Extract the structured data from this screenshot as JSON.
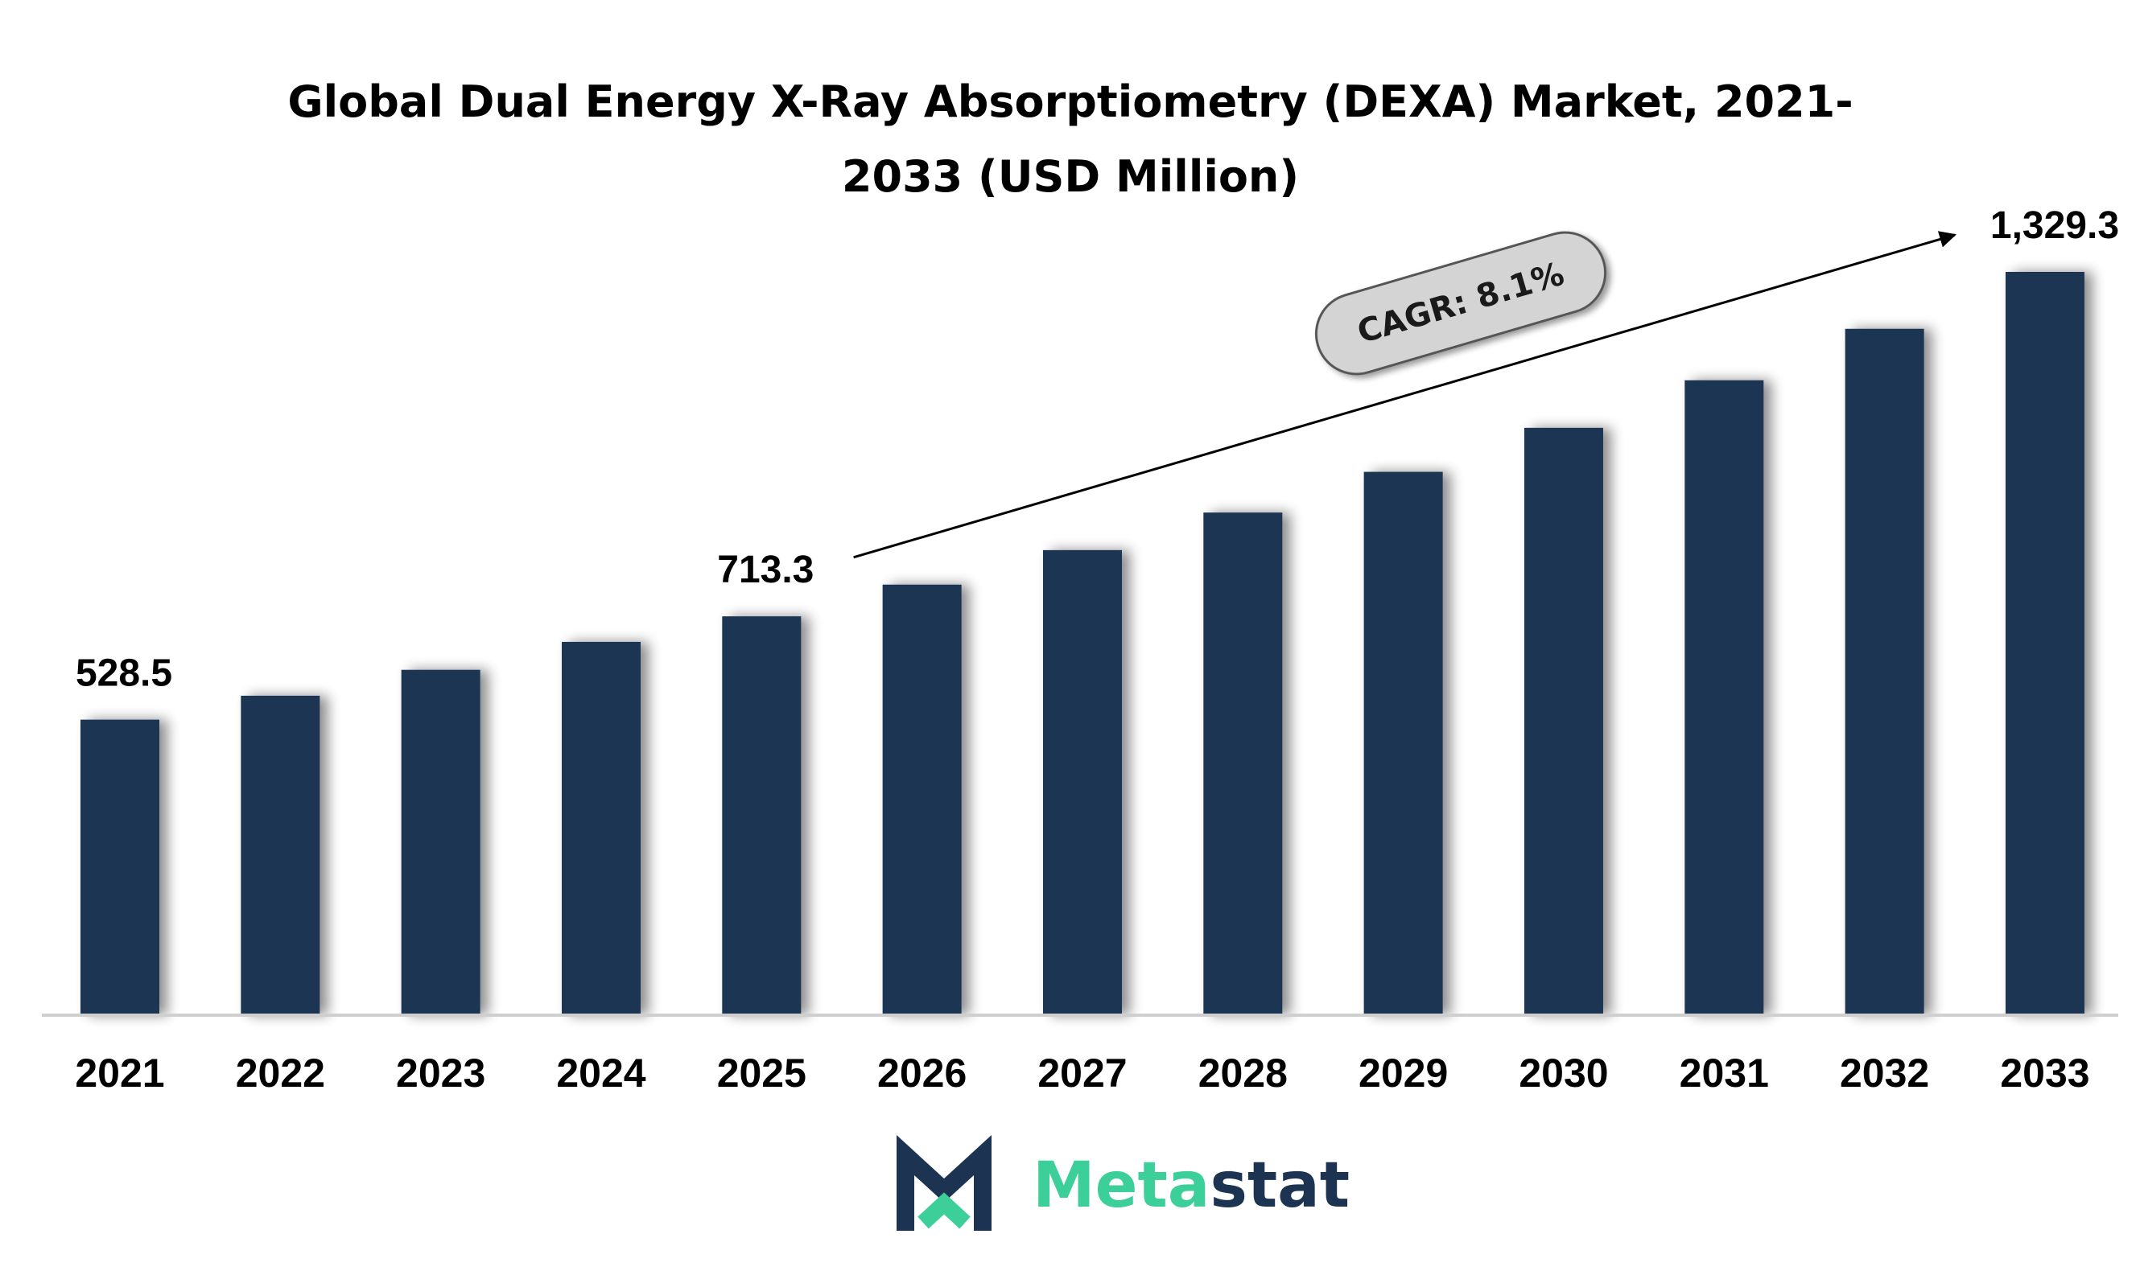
{
  "chart_data": {
    "type": "bar",
    "title_lines": [
      "Global Dual Energy X-Ray Absorptiometry (DEXA) Market, 2021-",
      "2033 (USD Million)"
    ],
    "categories": [
      "2021",
      "2022",
      "2023",
      "2024",
      "2025",
      "2026",
      "2027",
      "2028",
      "2029",
      "2030",
      "2031",
      "2032",
      "2033"
    ],
    "values": [
      528.5,
      571.3,
      617.6,
      667.6,
      713.3,
      770.0,
      831.7,
      898.9,
      971.7,
      1050.4,
      1135.5,
      1227.5,
      1329.3
    ],
    "data_labels": [
      {
        "index": 0,
        "text": "528.5"
      },
      {
        "index": 4,
        "text": "713.3"
      },
      {
        "index": 12,
        "text": "1,329.3"
      }
    ],
    "annotation": {
      "text": "CAGR: 8.1%",
      "arrow_from_index": 5,
      "arrow_to_index": 12
    },
    "xlabel": "",
    "ylabel": "",
    "ylim": [
      0,
      1329.3
    ],
    "grid": false,
    "legend": "none",
    "bar_color": "#1c3452"
  },
  "brand": {
    "name_part1": "Meta",
    "name_part2": "stat",
    "color_primary": "#1c3452",
    "color_accent": "#3ccf9a"
  }
}
